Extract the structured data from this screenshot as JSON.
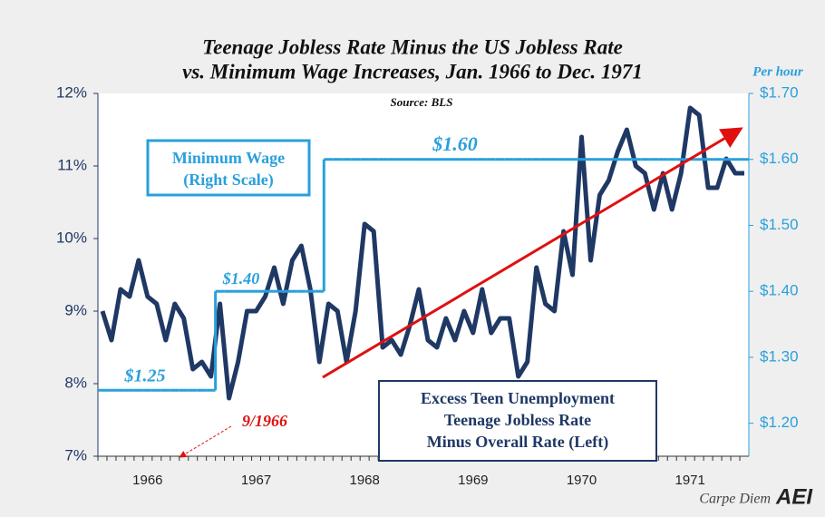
{
  "chart_data": {
    "type": "line",
    "title": [
      "Teenage Jobless Rate Minus the US Jobless Rate",
      "vs. Minimum Wage Increases, Jan. 1966 to Dec. 1971"
    ],
    "subtitle": "Source: BLS",
    "y2_label": "Per hour",
    "categories": [
      null,
      null,
      null,
      null,
      null,
      "1966",
      null,
      null,
      null,
      null,
      null,
      null,
      null,
      null,
      null,
      null,
      null,
      "1967",
      null,
      null,
      null,
      null,
      null,
      null,
      null,
      null,
      null,
      null,
      null,
      "1968",
      null,
      null,
      null,
      null,
      null,
      null,
      null,
      null,
      null,
      null,
      null,
      "1969",
      null,
      null,
      null,
      null,
      null,
      null,
      null,
      null,
      null,
      null,
      null,
      "1970",
      null,
      null,
      null,
      null,
      null,
      null,
      null,
      null,
      null,
      null,
      null,
      "1971",
      null,
      null,
      null,
      null,
      null,
      null
    ],
    "series": [
      {
        "name": "Excess Teen Unemployment",
        "description": [
          "Teenage Jobless Rate",
          "Minus Overall Rate (Left)"
        ],
        "color": "#1f3864",
        "values": [
          9.0,
          8.6,
          9.3,
          9.2,
          9.7,
          9.2,
          9.1,
          8.6,
          9.1,
          8.9,
          8.2,
          8.3,
          8.1,
          9.1,
          7.8,
          8.3,
          9.0,
          9.0,
          9.2,
          9.6,
          9.1,
          9.7,
          9.9,
          9.3,
          8.3,
          9.1,
          9.0,
          8.3,
          9.0,
          10.2,
          10.1,
          8.5,
          8.6,
          8.4,
          8.8,
          9.3,
          8.6,
          8.5,
          8.9,
          8.6,
          9.0,
          8.7,
          9.3,
          8.7,
          8.9,
          8.9,
          8.1,
          8.3,
          9.6,
          9.1,
          9.0,
          10.1,
          9.5,
          11.4,
          9.7,
          10.6,
          10.8,
          11.2,
          11.5,
          11.0,
          10.9,
          10.4,
          10.9,
          10.4,
          10.9,
          11.8,
          11.7,
          10.7,
          10.7,
          11.1,
          10.9,
          10.9
        ]
      },
      {
        "name": "Minimum Wage",
        "description": [
          "(Right Scale)"
        ],
        "color": "#29a0dc",
        "axis": "y2",
        "values": [
          1.25,
          1.25,
          1.25,
          1.25,
          1.25,
          1.25,
          1.25,
          1.25,
          1.25,
          1.25,
          1.25,
          1.25,
          1.25,
          1.4,
          1.4,
          1.4,
          1.4,
          1.4,
          1.4,
          1.4,
          1.4,
          1.4,
          1.4,
          1.4,
          1.4,
          1.6,
          1.6,
          1.6,
          1.6,
          1.6,
          1.6,
          1.6,
          1.6,
          1.6,
          1.6,
          1.6,
          1.6,
          1.6,
          1.6,
          1.6,
          1.6,
          1.6,
          1.6,
          1.6,
          1.6,
          1.6,
          1.6,
          1.6,
          1.6,
          1.6,
          1.6,
          1.6,
          1.6,
          1.6,
          1.6,
          1.6,
          1.6,
          1.6,
          1.6,
          1.6,
          1.6,
          1.6,
          1.6,
          1.6,
          1.6,
          1.6,
          1.6,
          1.6,
          1.6,
          1.6,
          1.6,
          1.6
        ]
      }
    ],
    "ylim": [
      7,
      12
    ],
    "yticks": [
      {
        "value": 7,
        "label": "7%"
      },
      {
        "value": 8,
        "label": "8%"
      },
      {
        "value": 9,
        "label": "9%"
      },
      {
        "value": 10,
        "label": "10%"
      },
      {
        "value": 11,
        "label": "11%"
      },
      {
        "value": 12,
        "label": "12%"
      }
    ],
    "y2lim": [
      1.15,
      1.7
    ],
    "y2ticks": [
      {
        "value": 1.2,
        "label": "$1.20"
      },
      {
        "value": 1.3,
        "label": "$1.30"
      },
      {
        "value": 1.4,
        "label": "$1.40"
      },
      {
        "value": 1.5,
        "label": "$1.50"
      },
      {
        "value": 1.6,
        "label": "$1.60"
      },
      {
        "value": 1.7,
        "label": "$1.70"
      }
    ],
    "grid": false,
    "annotations": [
      "$1.25",
      "$1.40",
      "$1.60",
      "9/1966"
    ],
    "credit": {
      "blog": "Carpe Diem",
      "logo": "AEI"
    }
  }
}
